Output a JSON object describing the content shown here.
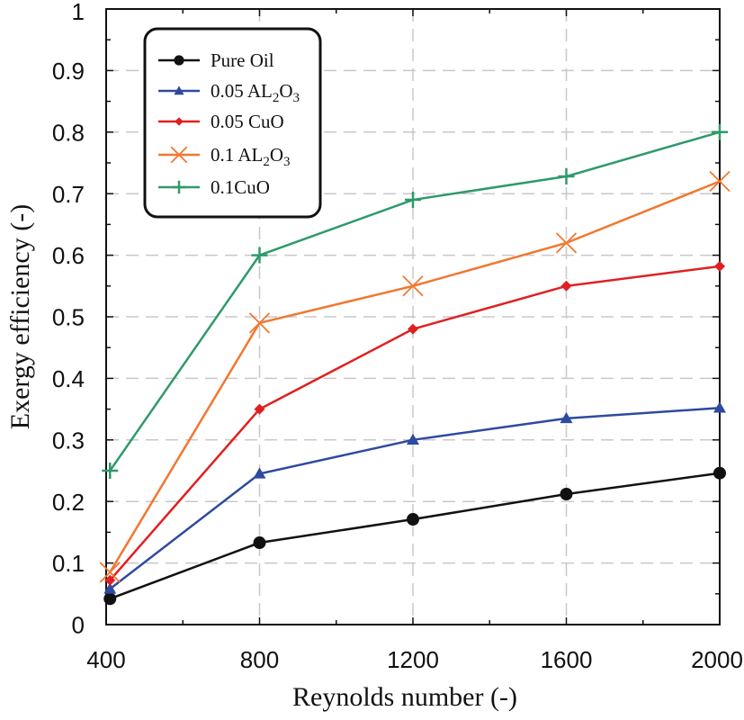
{
  "chart_data": {
    "type": "line",
    "title": "",
    "xlabel": "Reynolds number (-)",
    "ylabel": "Exergy efficiency (-)",
    "xlim": [
      400,
      2000
    ],
    "ylim": [
      0,
      1
    ],
    "grid": true,
    "legend_position": "top-left",
    "x_ticks": [
      "400",
      "800",
      "1200",
      "1600",
      "2000"
    ],
    "y_ticks": [
      "0",
      "0.1",
      "0.2",
      "0.3",
      "0.4",
      "0.5",
      "0.6",
      "0.7",
      "0.8",
      "0.9",
      "1"
    ],
    "x": [
      410,
      800,
      1200,
      1600,
      2000
    ],
    "series": [
      {
        "name": "Pure Oil",
        "label_main": "Pure Oil",
        "label_sub1": "",
        "label_mid": "",
        "label_sub2": "",
        "color": "#111111",
        "marker": "circle",
        "values": [
          0.042,
          0.133,
          0.171,
          0.212,
          0.246
        ]
      },
      {
        "name": "0.05 AL2O3",
        "label_main": "0.05 AL",
        "label_sub1": "2",
        "label_mid": "O",
        "label_sub2": "3",
        "color": "#2E4AA0",
        "marker": "triangle",
        "values": [
          0.058,
          0.245,
          0.3,
          0.335,
          0.352
        ]
      },
      {
        "name": "0.05 CuO",
        "label_main": "0.05 CuO",
        "label_sub1": "",
        "label_mid": "",
        "label_sub2": "",
        "color": "#E02020",
        "marker": "diamond",
        "values": [
          0.072,
          0.35,
          0.48,
          0.55,
          0.582
        ]
      },
      {
        "name": "0.1 AL2O3",
        "label_main": "0.1 AL",
        "label_sub1": "2",
        "label_mid": "O",
        "label_sub2": "3",
        "color": "#F07830",
        "marker": "x",
        "values": [
          0.085,
          0.49,
          0.55,
          0.62,
          0.72
        ]
      },
      {
        "name": "0.1CuO",
        "label_main": "0.1CuO",
        "label_sub1": "",
        "label_mid": "",
        "label_sub2": "",
        "color": "#2E9A6A",
        "marker": "plus",
        "values": [
          0.25,
          0.6,
          0.69,
          0.728,
          0.8
        ]
      }
    ]
  }
}
